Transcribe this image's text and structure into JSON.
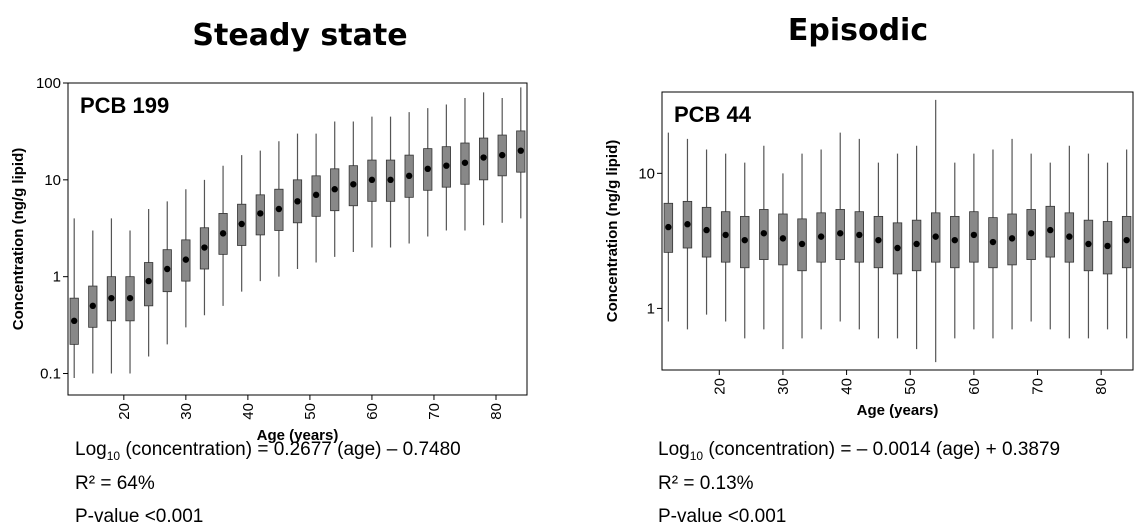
{
  "chart_data": [
    {
      "type": "box",
      "title": "Steady state",
      "label": "PCB 199",
      "xlabel": "Age (years)",
      "ylabel": "Concentration (ng/g lipid)",
      "log_scale": true,
      "color": "#888888",
      "x": [
        12,
        15,
        18,
        21,
        24,
        27,
        30,
        33,
        36,
        39,
        42,
        45,
        48,
        51,
        54,
        57,
        60,
        63,
        66,
        69,
        72,
        75,
        78,
        81,
        84
      ],
      "median": [
        0.35,
        0.5,
        0.6,
        0.6,
        0.9,
        1.2,
        1.5,
        2,
        2.8,
        3.5,
        4.5,
        5,
        6,
        7,
        8,
        9,
        10,
        10,
        11,
        13,
        14,
        15,
        17,
        18,
        20
      ],
      "q1": [
        0.2,
        0.3,
        0.35,
        0.35,
        0.5,
        0.7,
        0.9,
        1.2,
        1.7,
        2.1,
        2.7,
        3,
        3.6,
        4.2,
        4.8,
        5.4,
        6,
        6,
        6.6,
        7.8,
        8.4,
        9,
        10,
        11,
        12
      ],
      "q3": [
        0.6,
        0.8,
        1,
        1,
        1.4,
        1.9,
        2.4,
        3.2,
        4.5,
        5.6,
        7,
        8,
        10,
        11,
        13,
        14,
        16,
        16,
        18,
        21,
        22,
        24,
        27,
        29,
        32
      ],
      "low": [
        0.09,
        0.1,
        0.1,
        0.1,
        0.15,
        0.2,
        0.3,
        0.4,
        0.5,
        0.7,
        0.9,
        1,
        1.2,
        1.4,
        1.6,
        1.8,
        2,
        2,
        2.2,
        2.6,
        3,
        3,
        3.4,
        3.6,
        4
      ],
      "high": [
        4,
        3,
        4,
        3,
        5,
        6,
        8,
        10,
        14,
        18,
        20,
        25,
        30,
        30,
        40,
        40,
        45,
        45,
        50,
        55,
        60,
        70,
        80,
        70,
        90
      ],
      "xlim": [
        11,
        85
      ],
      "xticks": [
        20,
        30,
        40,
        50,
        60,
        70,
        80
      ],
      "ylim": [
        0.06,
        100
      ],
      "yticks": [
        0.1,
        1,
        10,
        100
      ],
      "equation": {
        "lhs": "Log",
        "sub": "10",
        "rhs": " (concentration) = 0.2677 (age) – 0.7480"
      },
      "r2": "R² = 64%",
      "pvalue": "P-value <0.001"
    },
    {
      "type": "box",
      "title": "Episodic",
      "label": "PCB 44",
      "xlabel": "Age (years)",
      "ylabel": "Concentration (ng/g lipid)",
      "log_scale": true,
      "color": "#888888",
      "x": [
        12,
        15,
        18,
        21,
        24,
        27,
        30,
        33,
        36,
        39,
        42,
        45,
        48,
        51,
        54,
        57,
        60,
        63,
        66,
        69,
        72,
        75,
        78,
        81,
        84
      ],
      "median": [
        4,
        4.2,
        3.8,
        3.5,
        3.2,
        3.6,
        3.3,
        3,
        3.4,
        3.6,
        3.5,
        3.2,
        2.8,
        3,
        3.4,
        3.2,
        3.5,
        3.1,
        3.3,
        3.6,
        3.8,
        3.4,
        3,
        2.9,
        3.2
      ],
      "q1": [
        2.6,
        2.8,
        2.4,
        2.2,
        2,
        2.3,
        2.1,
        1.9,
        2.2,
        2.3,
        2.2,
        2,
        1.8,
        1.9,
        2.2,
        2,
        2.2,
        2,
        2.1,
        2.3,
        2.4,
        2.2,
        1.9,
        1.8,
        2
      ],
      "q3": [
        6,
        6.2,
        5.6,
        5.2,
        4.8,
        5.4,
        5,
        4.6,
        5.1,
        5.4,
        5.2,
        4.8,
        4.3,
        4.5,
        5.1,
        4.8,
        5.2,
        4.7,
        5,
        5.4,
        5.7,
        5.1,
        4.5,
        4.4,
        4.8
      ],
      "low": [
        0.8,
        0.7,
        0.9,
        0.8,
        0.6,
        0.7,
        0.5,
        0.6,
        0.7,
        0.8,
        0.7,
        0.6,
        0.6,
        0.5,
        0.4,
        0.6,
        0.7,
        0.6,
        0.7,
        0.8,
        0.7,
        0.6,
        0.6,
        0.7,
        0.6
      ],
      "high": [
        20,
        18,
        15,
        14,
        12,
        16,
        10,
        14,
        15,
        20,
        18,
        12,
        14,
        16,
        35,
        12,
        14,
        15,
        18,
        14,
        12,
        16,
        14,
        12,
        15
      ],
      "xlim": [
        11,
        85
      ],
      "xticks": [
        20,
        30,
        40,
        50,
        60,
        70,
        80
      ],
      "ylim": [
        0.35,
        40
      ],
      "yticks": [
        1,
        10
      ],
      "equation": {
        "lhs": "Log",
        "sub": "10",
        "rhs": " (concentration) = – 0.0014 (age) + 0.3879"
      },
      "r2": "R² = 0.13%",
      "pvalue": "P-value <0.001"
    }
  ]
}
